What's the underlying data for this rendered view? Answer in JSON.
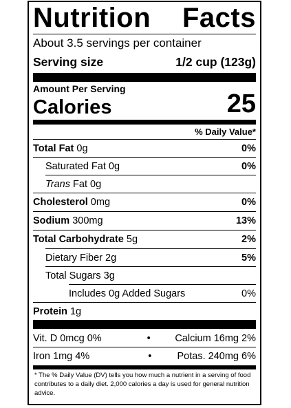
{
  "title_left": "Nutrition",
  "title_right": "Facts",
  "servings": "About 3.5 servings per container",
  "serving_size_label": "Serving size",
  "serving_size_value": "1/2 cup (123g)",
  "amount_per_serving": "Amount Per Serving",
  "calories_label": "Calories",
  "calories_value": "25",
  "dv_header": "% Daily Value*",
  "nutrients": {
    "total_fat": {
      "label": "Total Fat",
      "amount": "0g",
      "dv": "0%"
    },
    "saturated_fat": {
      "label": "Saturated Fat",
      "amount": "0g",
      "dv": "0%"
    },
    "trans_fat": {
      "label": "Trans",
      "label2": "Fat",
      "amount": "0g"
    },
    "cholesterol": {
      "label": "Cholesterol",
      "amount": "0mg",
      "dv": "0%"
    },
    "sodium": {
      "label": "Sodium",
      "amount": "300mg",
      "dv": "13%"
    },
    "total_carb": {
      "label": "Total Carbohydrate",
      "amount": "5g",
      "dv": "2%"
    },
    "fiber": {
      "label": "Dietary Fiber",
      "amount": "2g",
      "dv": "5%"
    },
    "total_sugars": {
      "label": "Total Sugars",
      "amount": "3g"
    },
    "added_sugars": {
      "label": "Includes 0g Added Sugars",
      "dv": "0%"
    },
    "protein": {
      "label": "Protein",
      "amount": "1g"
    }
  },
  "micros": {
    "row1_left": "Vit. D 0mcg 0%",
    "row1_right": "Calcium 16mg 2%",
    "row2_left": "Iron 1mg 4%",
    "row2_right": "Potas. 240mg 6%",
    "bullet": "•"
  },
  "footnote": "* The % Daily Value (DV) tells you how much a nutrient in a serving of food contributes to a daily diet. 2,000 calories a day is used for general nutrition advice."
}
